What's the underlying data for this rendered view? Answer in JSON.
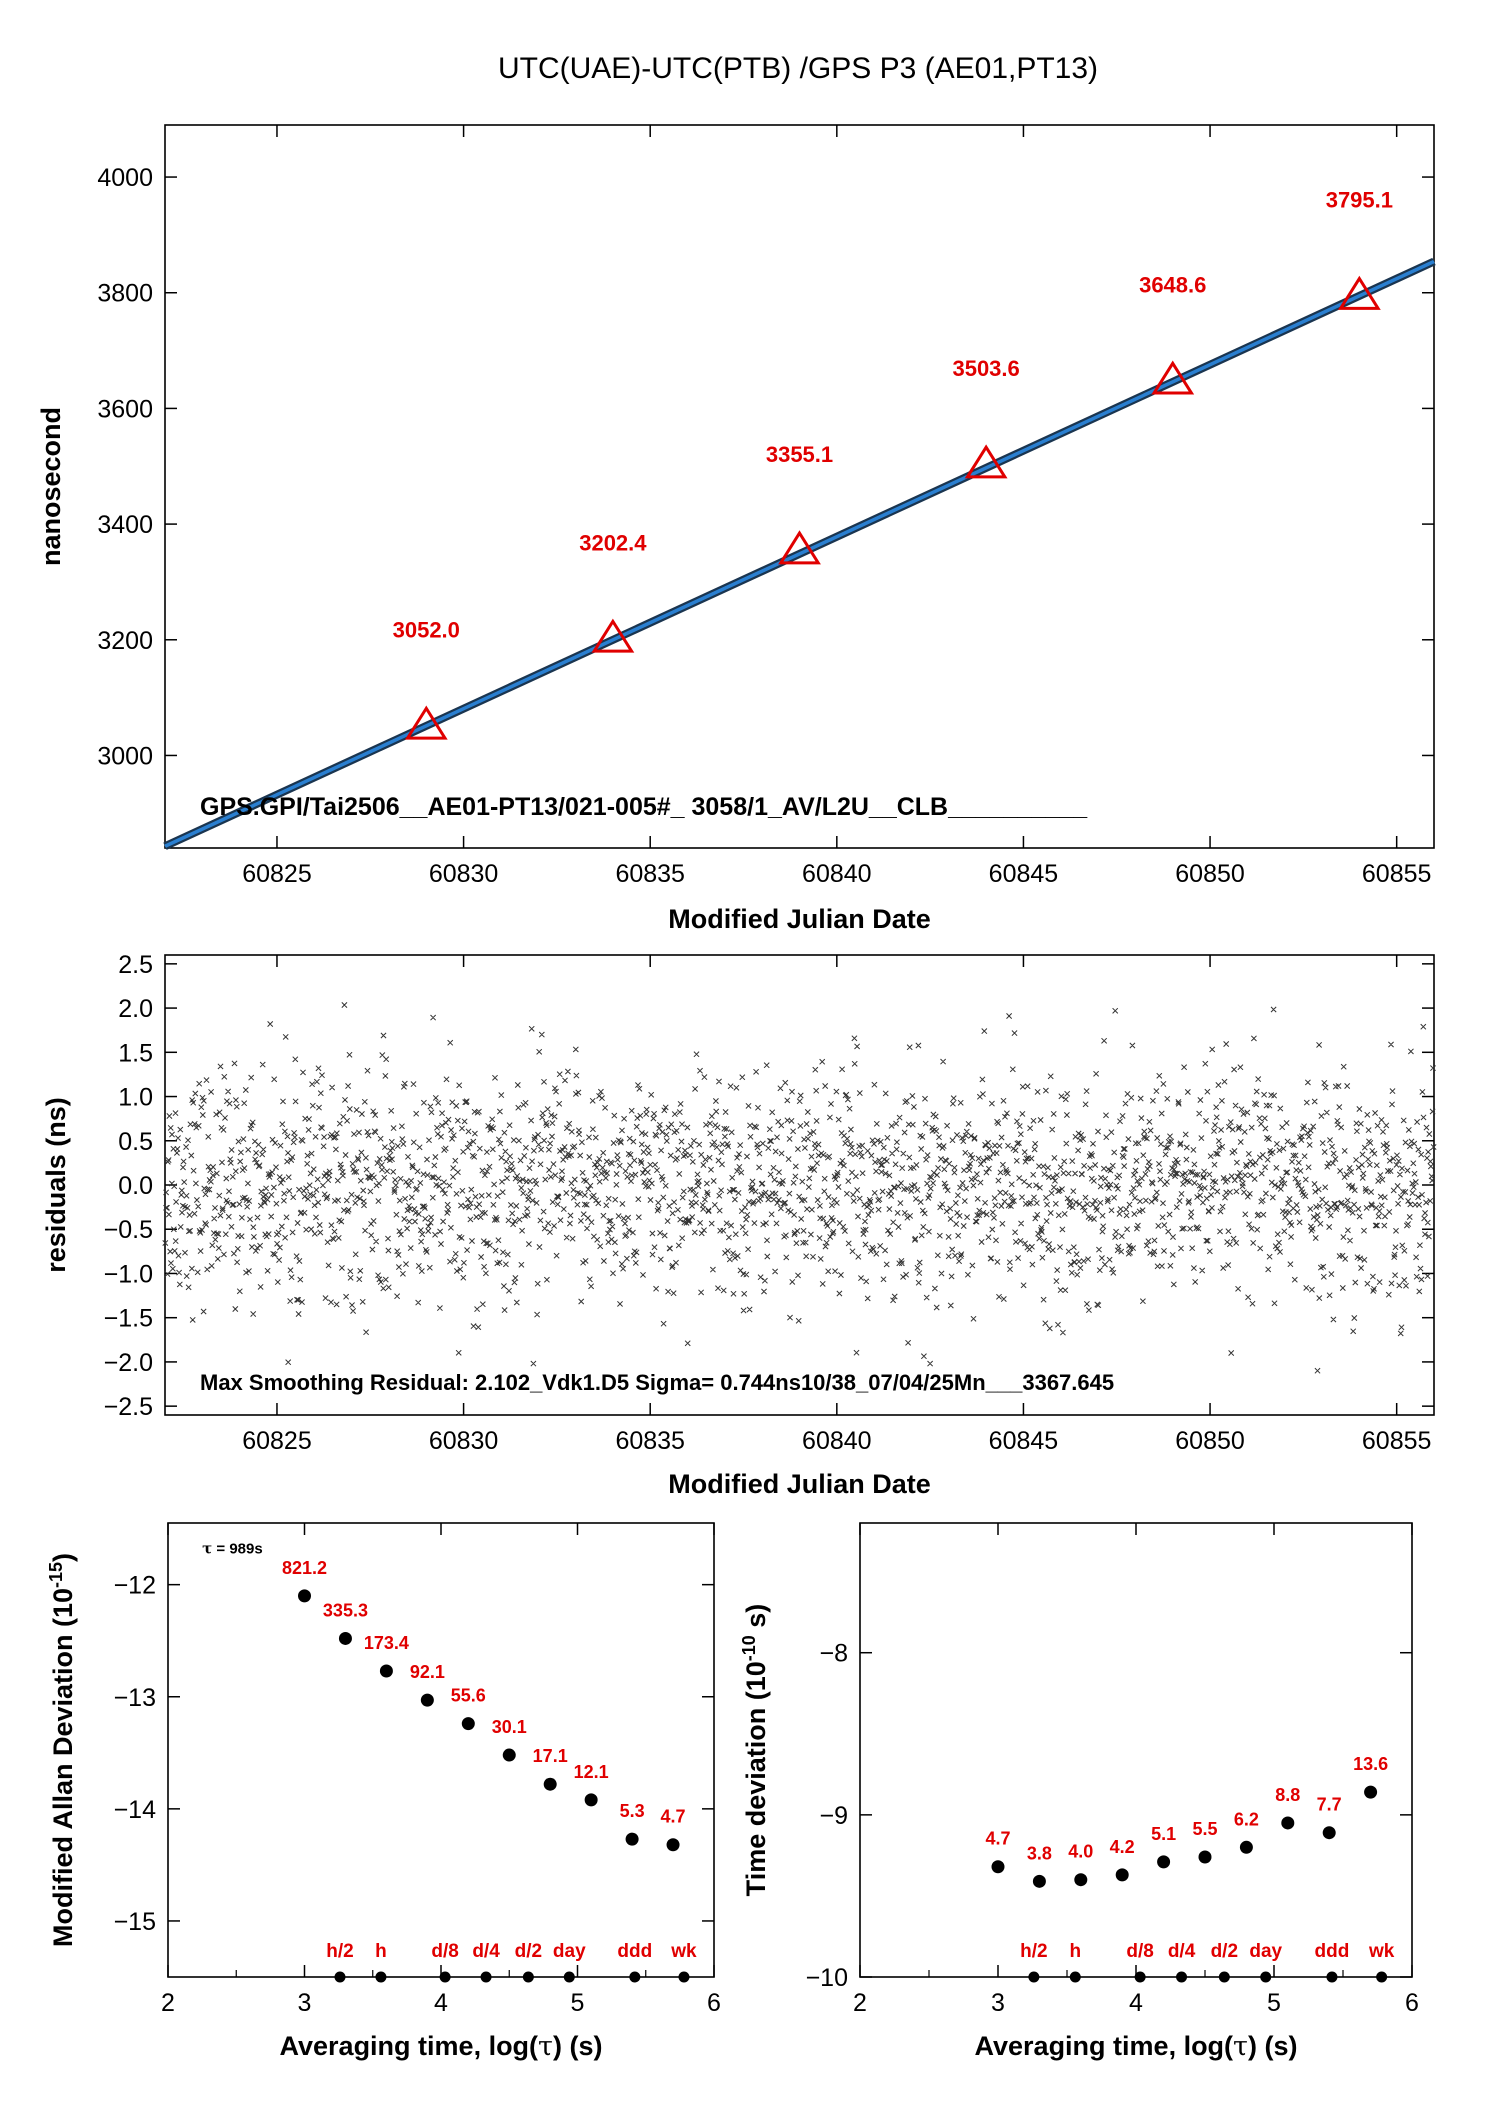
{
  "figure": {
    "title": "UTC(UAE)-UTC(PTB)  /GPS  P3  (AE01,PT13)"
  },
  "chart_data": [
    {
      "id": "top",
      "type": "line",
      "xlabel": "Modified Julian Date",
      "ylabel": "nanosecond",
      "xlim": [
        60822,
        60856
      ],
      "ylim": [
        2840,
        4090
      ],
      "xticks": [
        60825,
        60830,
        60835,
        60840,
        60845,
        60850,
        60855
      ],
      "yticks": [
        3000,
        3200,
        3400,
        3600,
        3800,
        4000
      ],
      "line": {
        "x": [
          60822,
          60856
        ],
        "y": [
          2843,
          3854
        ],
        "color": "#2a7fd0"
      },
      "markers": [
        {
          "x": 60829,
          "y": 3052.0,
          "label": "3052.0"
        },
        {
          "x": 60834,
          "y": 3202.4,
          "label": "3202.4"
        },
        {
          "x": 60839,
          "y": 3355.1,
          "label": "3355.1"
        },
        {
          "x": 60844,
          "y": 3503.6,
          "label": "3503.6"
        },
        {
          "x": 60849,
          "y": 3648.6,
          "label": "3648.6"
        },
        {
          "x": 60854,
          "y": 3795.1,
          "label": "3795.1"
        }
      ],
      "annotation": "GPS.GPI/Tai2506__AE01-PT13/021-005#_  3058/1_AV/L2U__CLB__________"
    },
    {
      "id": "residuals",
      "type": "scatter",
      "xlabel": "Modified Julian Date",
      "ylabel": "residuals (ns)",
      "xlim": [
        60822,
        60856
      ],
      "ylim": [
        -2.6,
        2.6
      ],
      "xticks": [
        60825,
        60830,
        60835,
        60840,
        60845,
        60850,
        60855
      ],
      "yticks": [
        -2.5,
        -2.0,
        -1.5,
        -1.0,
        -0.5,
        0.0,
        0.5,
        1.0,
        1.5,
        2.0,
        2.5
      ],
      "ytick_labels": [
        "−2.5",
        "−2.0",
        "−1.5",
        "−1.0",
        "−0.5",
        "0.0",
        "0.5",
        "1.0",
        "1.5",
        "2.0",
        "2.5"
      ],
      "sigma": 0.744,
      "max_abs": 2.102,
      "annotation": "Max Smoothing Residual: 2.102_Vdk1.D5  Sigma= 0.744ns10/38_07/04/25Mn___3367.645"
    },
    {
      "id": "mdev",
      "type": "scatter",
      "xlabel_pre": "Averaging time, log(",
      "xlabel_post": ") (s)",
      "ylabel_pre": "Modified Allan Deviation (10",
      "ylabel_exp": "-15",
      "ylabel_post": ")",
      "tau_symbol": "τ",
      "xlim": [
        2,
        6
      ],
      "ylim": [
        -15.5,
        -11.45
      ],
      "xticks": [
        2,
        3,
        4,
        5,
        6
      ],
      "yticks": [
        -12,
        -13,
        -14,
        -15
      ],
      "ytick_labels": [
        "−12",
        "−13",
        "−14",
        "−15"
      ],
      "tau_note": {
        "symbol": "τ",
        "text": "= 989s",
        "x": 2.25,
        "y": -11.72
      },
      "points": [
        {
          "x": 3.0,
          "y": -12.1,
          "label": "821.2"
        },
        {
          "x": 3.3,
          "y": -12.48,
          "label": "335.3"
        },
        {
          "x": 3.6,
          "y": -12.77,
          "label": "173.4"
        },
        {
          "x": 3.9,
          "y": -13.03,
          "label": "92.1"
        },
        {
          "x": 4.2,
          "y": -13.24,
          "label": "55.6"
        },
        {
          "x": 4.5,
          "y": -13.52,
          "label": "30.1"
        },
        {
          "x": 4.8,
          "y": -13.78,
          "label": "17.1"
        },
        {
          "x": 5.1,
          "y": -13.92,
          "label": "12.1"
        },
        {
          "x": 5.4,
          "y": -14.27,
          "label": "5.3"
        },
        {
          "x": 5.7,
          "y": -14.32,
          "label": "4.7"
        }
      ],
      "baseline": [
        {
          "x": 3.26,
          "label": "h/2"
        },
        {
          "x": 3.56,
          "label": "h"
        },
        {
          "x": 4.03,
          "label": "d/8"
        },
        {
          "x": 4.33,
          "label": "d/4"
        },
        {
          "x": 4.64,
          "label": "d/2"
        },
        {
          "x": 4.94,
          "label": "day"
        },
        {
          "x": 5.42,
          "label": "ddd"
        },
        {
          "x": 5.78,
          "label": "wk"
        }
      ]
    },
    {
      "id": "tdev",
      "type": "scatter",
      "xlabel_pre": "Averaging time, log(",
      "xlabel_post": ") (s)",
      "ylabel_pre": "Time deviation (10",
      "ylabel_exp": "-10",
      "ylabel_post": " s)",
      "tau_symbol": "τ",
      "xlim": [
        2,
        6
      ],
      "ylim": [
        -10,
        -7.2
      ],
      "xticks": [
        2,
        3,
        4,
        5,
        6
      ],
      "yticks": [
        -8,
        -9,
        -10
      ],
      "ytick_labels": [
        "−8",
        "−9",
        "−10"
      ],
      "points": [
        {
          "x": 3.0,
          "y": -9.32,
          "label": "4.7"
        },
        {
          "x": 3.3,
          "y": -9.41,
          "label": "3.8"
        },
        {
          "x": 3.6,
          "y": -9.4,
          "label": "4.0"
        },
        {
          "x": 3.9,
          "y": -9.37,
          "label": "4.2"
        },
        {
          "x": 4.2,
          "y": -9.29,
          "label": "5.1"
        },
        {
          "x": 4.5,
          "y": -9.26,
          "label": "5.5"
        },
        {
          "x": 4.8,
          "y": -9.2,
          "label": "6.2"
        },
        {
          "x": 5.1,
          "y": -9.05,
          "label": "8.8"
        },
        {
          "x": 5.4,
          "y": -9.11,
          "label": "7.7"
        },
        {
          "x": 5.7,
          "y": -8.86,
          "label": "13.6"
        }
      ],
      "baseline": [
        {
          "x": 3.26,
          "label": "h/2"
        },
        {
          "x": 3.56,
          "label": "h"
        },
        {
          "x": 4.03,
          "label": "d/8"
        },
        {
          "x": 4.33,
          "label": "d/4"
        },
        {
          "x": 4.64,
          "label": "d/2"
        },
        {
          "x": 4.94,
          "label": "day"
        },
        {
          "x": 5.42,
          "label": "ddd"
        },
        {
          "x": 5.78,
          "label": "wk"
        }
      ]
    }
  ]
}
